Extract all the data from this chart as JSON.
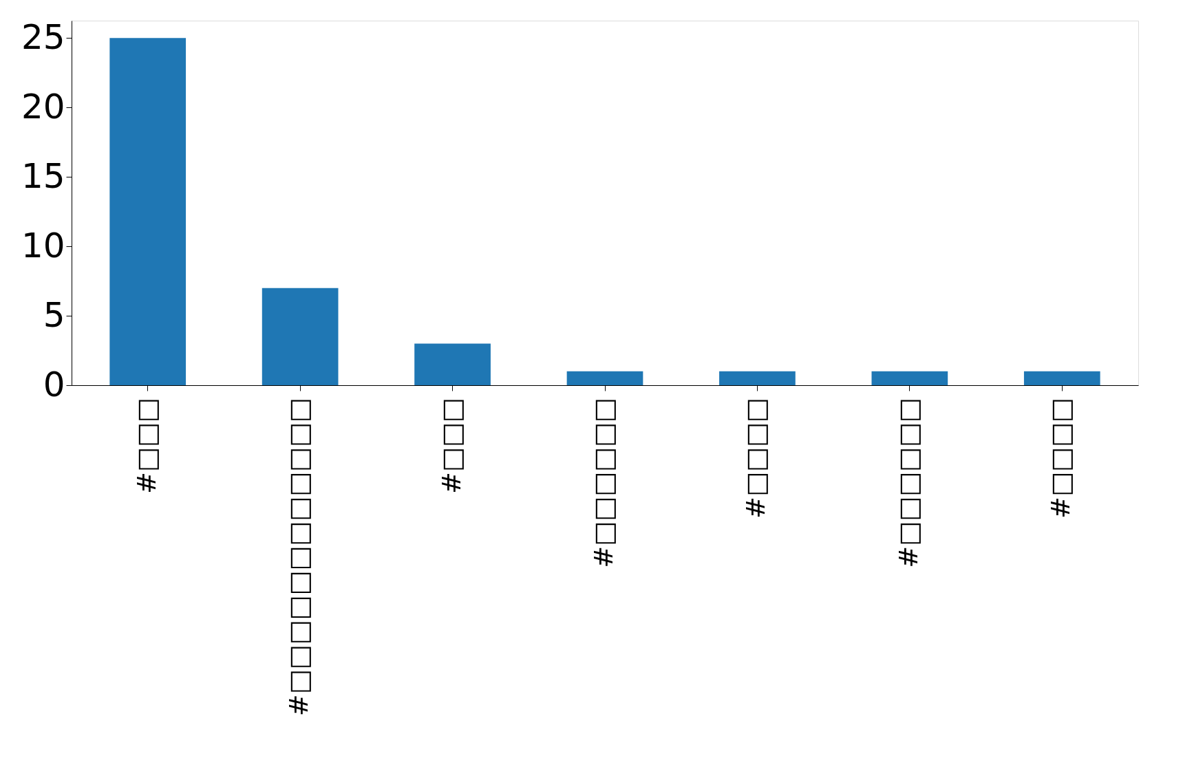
{
  "chart_data": {
    "type": "bar",
    "categories": [
      "#□□□",
      "#□□□□□□□□□□□□",
      "#□□□",
      "#□□□□□□",
      "#□□□□",
      "#□□□□□□",
      "#□□□□"
    ],
    "values": [
      25,
      7,
      3,
      1,
      1,
      1,
      1
    ],
    "color": "#1f77b4",
    "ylim": [
      0,
      26.25
    ],
    "yticks": [
      0,
      5,
      10,
      15,
      20,
      25
    ],
    "grid": false
  }
}
